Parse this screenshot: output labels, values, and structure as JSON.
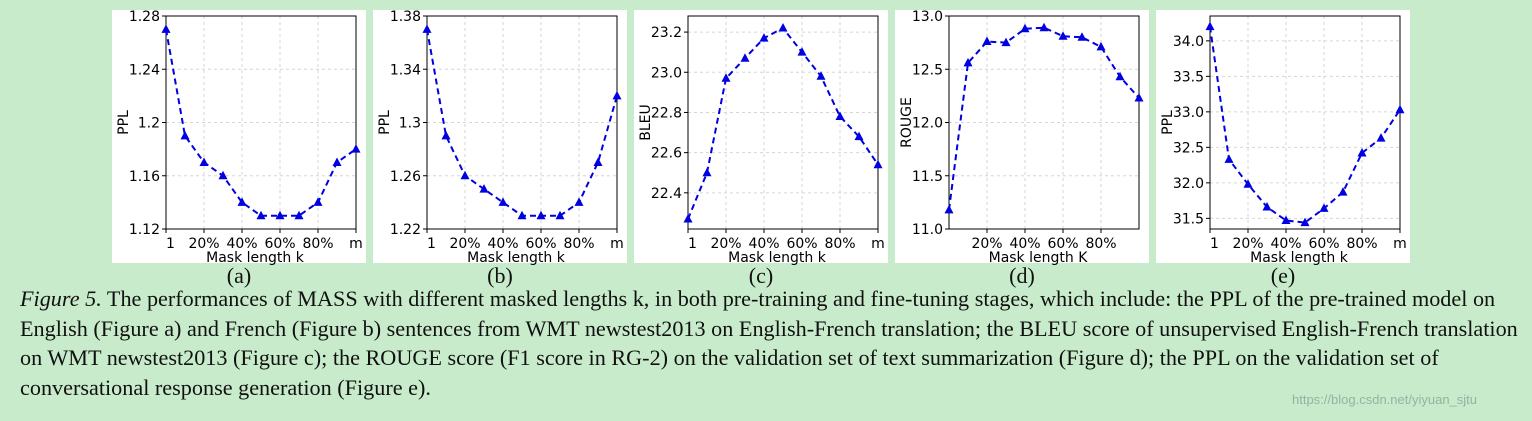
{
  "figure": {
    "caption_label": "Figure 5.",
    "caption_text": " The performances of MASS with different masked lengths k, in both pre-training and fine-tuning stages, which include: the PPL of the pre-trained model on English (Figure a) and French (Figure b) sentences from WMT newstest2013 on English-French translation; the BLEU score of unsupervised English-French translation on WMT newstest2013 (Figure c); the ROUGE score (F1 score in RG-2) on the validation set of text summarization (Figure d); the PPL on the validation set of conversational response generation (Figure e).",
    "watermark": "https://blog.csdn.net/yiyuan_sjtu"
  },
  "colors": {
    "line": "#0000e0",
    "background": "#c8eccb"
  },
  "chart_data": [
    {
      "type": "line",
      "panel_label": "(a)",
      "xlabel": "Mask length k",
      "ylabel": "PPL",
      "x_ticks": [
        "1",
        "20%",
        "40%",
        "60%",
        "80%",
        "m"
      ],
      "x": [
        "1",
        "10%",
        "20%",
        "30%",
        "40%",
        "50%",
        "60%",
        "70%",
        "80%",
        "90%",
        "m"
      ],
      "y_ticks": [
        "1.12",
        "1.16",
        "1.2",
        "1.24",
        "1.28"
      ],
      "ylim": [
        1.12,
        1.28
      ],
      "series": [
        {
          "values": [
            1.27,
            1.19,
            1.17,
            1.16,
            1.14,
            1.13,
            1.13,
            1.13,
            1.14,
            1.17,
            1.18
          ]
        }
      ]
    },
    {
      "type": "line",
      "panel_label": "(b)",
      "xlabel": "Mask length k",
      "ylabel": "PPL",
      "x_ticks": [
        "1",
        "20%",
        "40%",
        "60%",
        "80%",
        "m"
      ],
      "x": [
        "1",
        "10%",
        "20%",
        "30%",
        "40%",
        "50%",
        "60%",
        "70%",
        "80%",
        "90%",
        "m"
      ],
      "y_ticks": [
        "1.22",
        "1.26",
        "1.3",
        "1.34",
        "1.38"
      ],
      "ylim": [
        1.22,
        1.38
      ],
      "series": [
        {
          "values": [
            1.37,
            1.29,
            1.26,
            1.25,
            1.24,
            1.23,
            1.23,
            1.23,
            1.24,
            1.27,
            1.32
          ]
        }
      ]
    },
    {
      "type": "line",
      "panel_label": "(c)",
      "xlabel": "Mask length k",
      "ylabel": "BLEU",
      "x_ticks": [
        "1",
        "20%",
        "40%",
        "60%",
        "80%",
        "m"
      ],
      "x": [
        "1",
        "10%",
        "20%",
        "30%",
        "40%",
        "50%",
        "60%",
        "70%",
        "80%",
        "90%",
        "m"
      ],
      "y_ticks": [
        "22.4",
        "22.6",
        "22.8",
        "23.0",
        "23.2"
      ],
      "ylim": [
        22.22,
        23.28
      ],
      "series": [
        {
          "values": [
            22.27,
            22.5,
            22.97,
            23.07,
            23.17,
            23.22,
            23.1,
            22.98,
            22.78,
            22.68,
            22.54
          ]
        }
      ]
    },
    {
      "type": "line",
      "panel_label": "(d)",
      "xlabel": "Mask length K",
      "ylabel": "ROUGE",
      "x_ticks": [
        "20%",
        "40%",
        "60%",
        "80%"
      ],
      "x": [
        "1",
        "10%",
        "20%",
        "30%",
        "40%",
        "50%",
        "60%",
        "70%",
        "80%",
        "90%",
        "m"
      ],
      "y_ticks": [
        "11.0",
        "11.5",
        "12.0",
        "12.5",
        "13.0"
      ],
      "ylim": [
        11.0,
        13.0
      ],
      "series": [
        {
          "values": [
            11.18,
            12.56,
            12.76,
            12.75,
            12.88,
            12.89,
            12.81,
            12.8,
            12.71,
            12.43,
            12.23
          ]
        }
      ]
    },
    {
      "type": "line",
      "panel_label": "(e)",
      "xlabel": "Mask length k",
      "ylabel": "PPL",
      "x_ticks": [
        "1",
        "20%",
        "40%",
        "60%",
        "80%",
        "m"
      ],
      "x": [
        "1",
        "10%",
        "20%",
        "30%",
        "40%",
        "50%",
        "60%",
        "70%",
        "80%",
        "90%",
        "m"
      ],
      "y_ticks": [
        "31.5",
        "32.0",
        "32.5",
        "33.0",
        "33.5",
        "34.0"
      ],
      "ylim": [
        31.35,
        34.35
      ],
      "series": [
        {
          "values": [
            34.2,
            32.33,
            31.98,
            31.66,
            31.47,
            31.44,
            31.64,
            31.87,
            32.42,
            32.63,
            33.03
          ]
        }
      ]
    }
  ]
}
